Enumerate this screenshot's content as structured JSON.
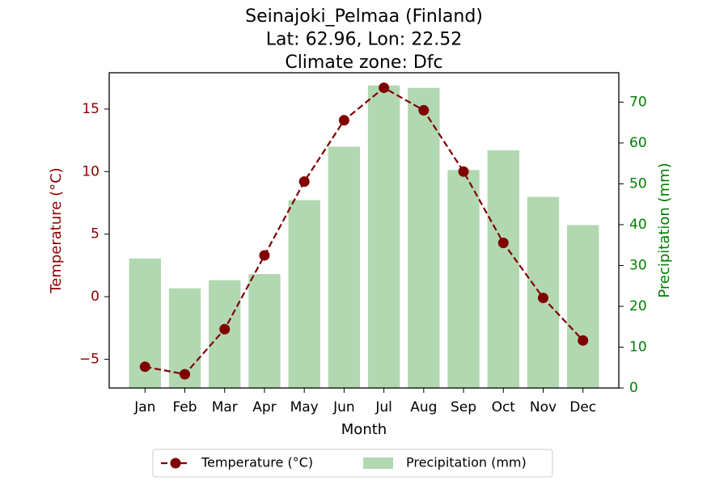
{
  "chart_data": {
    "type": "bar+line",
    "title_lines": [
      "Seinajoki_Pelmaa (Finland)",
      "Lat: 62.96, Lon: 22.52",
      "Climate zone: Dfc"
    ],
    "xlabel": "Month",
    "ylabel_left": "Temperature (°C)",
    "ylabel_right": "Precipitation (mm)",
    "categories": [
      "Jan",
      "Feb",
      "Mar",
      "Apr",
      "May",
      "Jun",
      "Jul",
      "Aug",
      "Sep",
      "Oct",
      "Nov",
      "Dec"
    ],
    "temperature": {
      "name": "Temperature (°C)",
      "values": [
        -5.6,
        -6.2,
        -2.6,
        3.3,
        9.2,
        14.1,
        16.7,
        14.9,
        10.0,
        4.3,
        -0.1,
        -3.5
      ],
      "color": "#800000",
      "style": "dashed line with circle markers"
    },
    "precipitation": {
      "name": "Precipitation (mm)",
      "values": [
        31.7,
        24.4,
        26.4,
        27.9,
        46.0,
        59.1,
        74.1,
        73.5,
        53.4,
        58.2,
        46.8,
        39.9
      ],
      "color": "#b2d8b2"
    },
    "y_left": {
      "range": [
        -7.3,
        17.9
      ],
      "ticks": [
        -5,
        0,
        5,
        10,
        15
      ],
      "tick_labels": [
        "−5",
        "0",
        "5",
        "10",
        "15"
      ],
      "color": "#8b0000"
    },
    "y_right": {
      "range": [
        0,
        77.2
      ],
      "ticks": [
        0,
        10,
        20,
        30,
        40,
        50,
        60,
        70
      ],
      "tick_labels": [
        "0",
        "10",
        "20",
        "30",
        "40",
        "50",
        "60",
        "70"
      ],
      "color": "#008000"
    },
    "grid": false,
    "legend": {
      "placement": "bottom-center",
      "entries": [
        "Temperature (°C)",
        "Precipitation (mm)"
      ]
    }
  }
}
